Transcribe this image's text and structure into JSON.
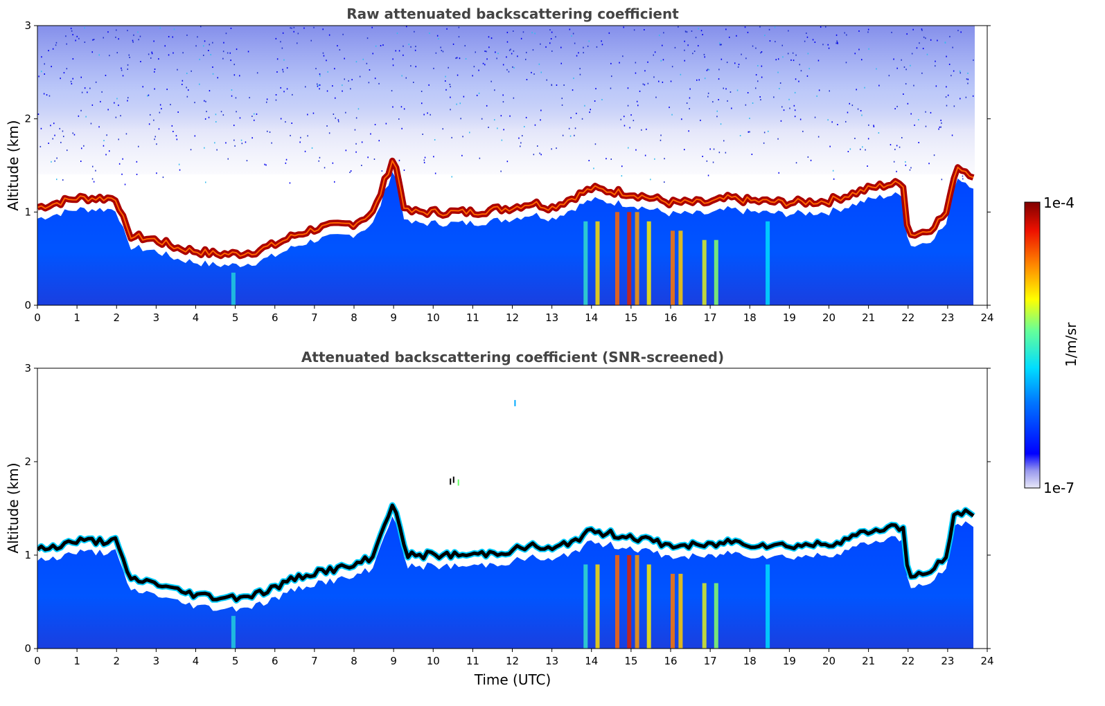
{
  "chart_data": [
    {
      "type": "heatmap",
      "title": "Raw attenuated backscattering coefficient",
      "xlabel": "",
      "ylabel": "Altitude (km)",
      "xlim": [
        0,
        24
      ],
      "ylim": [
        0,
        3
      ],
      "x_ticks": [
        "0",
        "1",
        "2",
        "3",
        "4",
        "5",
        "6",
        "7",
        "8",
        "9",
        "10",
        "11",
        "12",
        "13",
        "14",
        "15",
        "16",
        "17",
        "18",
        "19",
        "20",
        "21",
        "22",
        "23",
        "24"
      ],
      "y_ticks": [
        "0",
        "1",
        "2",
        "3"
      ],
      "data_end_hour": 23.65,
      "layer_top_km": [
        [
          0.0,
          1.05
        ],
        [
          0.5,
          1.1
        ],
        [
          1.0,
          1.15
        ],
        [
          1.5,
          1.15
        ],
        [
          2.0,
          1.15
        ],
        [
          2.3,
          0.75
        ],
        [
          3.0,
          0.7
        ],
        [
          3.5,
          0.62
        ],
        [
          4.0,
          0.58
        ],
        [
          4.5,
          0.55
        ],
        [
          5.0,
          0.55
        ],
        [
          5.5,
          0.58
        ],
        [
          6.0,
          0.65
        ],
        [
          6.5,
          0.75
        ],
        [
          7.0,
          0.82
        ],
        [
          7.5,
          0.85
        ],
        [
          8.0,
          0.88
        ],
        [
          8.5,
          1.0
        ],
        [
          9.0,
          1.6
        ],
        [
          9.3,
          1.0
        ],
        [
          10.0,
          1.0
        ],
        [
          11.0,
          1.0
        ],
        [
          12.0,
          1.05
        ],
        [
          12.5,
          1.1
        ],
        [
          13.0,
          1.05
        ],
        [
          14.0,
          1.25
        ],
        [
          15.0,
          1.2
        ],
        [
          16.0,
          1.1
        ],
        [
          17.0,
          1.1
        ],
        [
          17.5,
          1.15
        ],
        [
          18.0,
          1.12
        ],
        [
          19.0,
          1.1
        ],
        [
          20.0,
          1.12
        ],
        [
          21.0,
          1.25
        ],
        [
          21.5,
          1.3
        ],
        [
          21.9,
          1.3
        ],
        [
          22.0,
          0.75
        ],
        [
          22.5,
          0.8
        ],
        [
          23.0,
          1.0
        ],
        [
          23.2,
          1.5
        ],
        [
          23.65,
          1.4
        ]
      ],
      "colorbar": {
        "label": "1/m/sr",
        "min_label": "1e-7",
        "max_label": "1e-4",
        "scale": "log",
        "colormap": "jet"
      }
    },
    {
      "type": "heatmap",
      "title": "Attenuated backscattering coefficient (SNR-screened)",
      "xlabel": "Time (UTC)",
      "ylabel": "Altitude (km)",
      "xlim": [
        0,
        24
      ],
      "ylim": [
        0,
        3
      ],
      "x_ticks": [
        "0",
        "1",
        "2",
        "3",
        "4",
        "5",
        "6",
        "7",
        "8",
        "9",
        "10",
        "11",
        "12",
        "13",
        "14",
        "15",
        "16",
        "17",
        "18",
        "19",
        "20",
        "21",
        "22",
        "23",
        "24"
      ],
      "y_ticks": [
        "0",
        "1",
        "2",
        "3"
      ],
      "data_end_hour": 23.65,
      "colorbar": {
        "label": "1/m/sr",
        "min_label": "1e-7",
        "max_label": "1e-4",
        "scale": "log",
        "colormap": "jet"
      }
    }
  ]
}
